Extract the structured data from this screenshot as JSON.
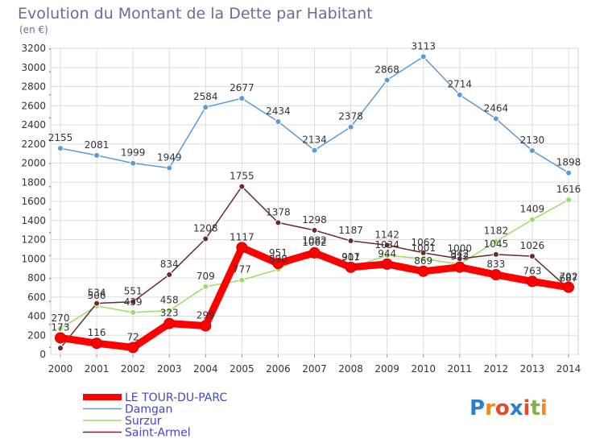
{
  "chart_data": {
    "type": "line",
    "title": "Evolution du Montant de la Dette par Habitant",
    "subtitle": "(en €)",
    "x": [
      2000,
      2001,
      2002,
      2003,
      2004,
      2005,
      2006,
      2007,
      2008,
      2009,
      2010,
      2011,
      2012,
      2013,
      2014
    ],
    "ylim": [
      0,
      3200
    ],
    "yticks": [
      0,
      200,
      400,
      600,
      800,
      1000,
      1200,
      1400,
      1600,
      1800,
      2000,
      2200,
      2400,
      2600,
      2800,
      3000,
      3200
    ],
    "grid": true,
    "legend": "bottom-left",
    "series": [
      {
        "name": "Damgan",
        "color": "#5b9bd5",
        "values": [
          2155,
          2081,
          1999,
          1949,
          2584,
          2677,
          2434,
          2134,
          2378,
          2868,
          3113,
          2714,
          2464,
          2130,
          1898
        ]
      },
      {
        "name": "Surzur",
        "color": "#99dd66",
        "values": [
          270,
          506,
          439,
          458,
          709,
          777,
          890,
          1082,
          907,
          1034,
          1001,
          942,
          1182,
          1409,
          1616
        ]
      },
      {
        "name": "Saint-Armel",
        "color": "#6b2a2a",
        "values": [
          66,
          534,
          551,
          834,
          1208,
          1755,
          1378,
          1298,
          1187,
          1142,
          1062,
          1000,
          1045,
          1026,
          687
        ]
      },
      {
        "name": "LE TOUR-DU-PARC",
        "color": "#ff0000",
        "values": [
          173,
          116,
          72,
          323,
          299,
          1117,
          951,
          1062,
          911,
          944,
          869,
          912,
          833,
          763,
          702
        ]
      }
    ],
    "labels": [
      {
        "text": "2155",
        "x": 2000,
        "y": 2155,
        "pos": "above"
      },
      {
        "text": "2081",
        "x": 2001,
        "y": 2081,
        "pos": "above"
      },
      {
        "text": "1999",
        "x": 2002,
        "y": 1999,
        "pos": "above"
      },
      {
        "text": "1949",
        "x": 2003,
        "y": 1949,
        "pos": "above"
      },
      {
        "text": "2584",
        "x": 2004,
        "y": 2584,
        "pos": "above"
      },
      {
        "text": "2677",
        "x": 2005,
        "y": 2677,
        "pos": "above"
      },
      {
        "text": "2434",
        "x": 2006,
        "y": 2434,
        "pos": "above"
      },
      {
        "text": "2134",
        "x": 2007,
        "y": 2134,
        "pos": "above"
      },
      {
        "text": "2378",
        "x": 2008,
        "y": 2378,
        "pos": "above"
      },
      {
        "text": "2868",
        "x": 2009,
        "y": 2868,
        "pos": "above"
      },
      {
        "text": "3113",
        "x": 2010,
        "y": 3113,
        "pos": "above"
      },
      {
        "text": "2714",
        "x": 2011,
        "y": 2714,
        "pos": "above"
      },
      {
        "text": "2464",
        "x": 2012,
        "y": 2464,
        "pos": "above"
      },
      {
        "text": "2130",
        "x": 2013,
        "y": 2130,
        "pos": "above"
      },
      {
        "text": "1898",
        "x": 2014,
        "y": 1898,
        "pos": "above"
      },
      {
        "text": "270",
        "x": 2000,
        "y": 270,
        "pos": "above"
      },
      {
        "text": "506",
        "x": 2001,
        "y": 506,
        "pos": "above"
      },
      {
        "text": "439",
        "x": 2002,
        "y": 439,
        "pos": "above"
      },
      {
        "text": "458",
        "x": 2003,
        "y": 458,
        "pos": "above"
      },
      {
        "text": "709",
        "x": 2004,
        "y": 709,
        "pos": "above"
      },
      {
        "text": "777",
        "x": 2005,
        "y": 777,
        "pos": "above"
      },
      {
        "text": "890",
        "x": 2006,
        "y": 890,
        "pos": "above"
      },
      {
        "text": "1082",
        "x": 2007,
        "y": 1082,
        "pos": "above"
      },
      {
        "text": "907",
        "x": 2008,
        "y": 907,
        "pos": "above"
      },
      {
        "text": "1034",
        "x": 2009,
        "y": 1034,
        "pos": "above"
      },
      {
        "text": "1001",
        "x": 2010,
        "y": 1001,
        "pos": "above"
      },
      {
        "text": "942",
        "x": 2011,
        "y": 942,
        "pos": "above"
      },
      {
        "text": "1182",
        "x": 2012,
        "y": 1182,
        "pos": "above"
      },
      {
        "text": "1409",
        "x": 2013,
        "y": 1409,
        "pos": "above"
      },
      {
        "text": "1616",
        "x": 2014,
        "y": 1616,
        "pos": "above"
      },
      {
        "text": "534",
        "x": 2001,
        "y": 534,
        "pos": "above"
      },
      {
        "text": "551",
        "x": 2002,
        "y": 551,
        "pos": "above"
      },
      {
        "text": "834",
        "x": 2003,
        "y": 834,
        "pos": "above"
      },
      {
        "text": "1208",
        "x": 2004,
        "y": 1208,
        "pos": "above"
      },
      {
        "text": "1755",
        "x": 2005,
        "y": 1755,
        "pos": "above"
      },
      {
        "text": "1378",
        "x": 2006,
        "y": 1378,
        "pos": "above"
      },
      {
        "text": "1298",
        "x": 2007,
        "y": 1298,
        "pos": "above"
      },
      {
        "text": "1187",
        "x": 2008,
        "y": 1187,
        "pos": "above"
      },
      {
        "text": "1142",
        "x": 2009,
        "y": 1142,
        "pos": "above"
      },
      {
        "text": "1062",
        "x": 2010,
        "y": 1062,
        "pos": "above"
      },
      {
        "text": "1000",
        "x": 2011,
        "y": 1000,
        "pos": "above"
      },
      {
        "text": "1045",
        "x": 2012,
        "y": 1045,
        "pos": "above"
      },
      {
        "text": "1026",
        "x": 2013,
        "y": 1026,
        "pos": "above"
      },
      {
        "text": "687",
        "x": 2014,
        "y": 687,
        "pos": "above"
      },
      {
        "text": "173",
        "x": 2000,
        "y": 173,
        "pos": "above"
      },
      {
        "text": "116",
        "x": 2001,
        "y": 116,
        "pos": "above"
      },
      {
        "text": "72",
        "x": 2002,
        "y": 72,
        "pos": "above"
      },
      {
        "text": "323",
        "x": 2003,
        "y": 323,
        "pos": "above"
      },
      {
        "text": "299",
        "x": 2004,
        "y": 299,
        "pos": "above"
      },
      {
        "text": "1117",
        "x": 2005,
        "y": 1117,
        "pos": "above"
      },
      {
        "text": "951",
        "x": 2006,
        "y": 951,
        "pos": "above"
      },
      {
        "text": "1062",
        "x": 2007,
        "y": 1062,
        "pos": "above"
      },
      {
        "text": "911",
        "x": 2008,
        "y": 911,
        "pos": "above"
      },
      {
        "text": "944",
        "x": 2009,
        "y": 944,
        "pos": "above"
      },
      {
        "text": "869",
        "x": 2010,
        "y": 869,
        "pos": "above"
      },
      {
        "text": "912",
        "x": 2011,
        "y": 912,
        "pos": "above"
      },
      {
        "text": "833",
        "x": 2012,
        "y": 833,
        "pos": "above"
      },
      {
        "text": "763",
        "x": 2013,
        "y": 763,
        "pos": "above"
      },
      {
        "text": "702",
        "x": 2014,
        "y": 702,
        "pos": "above"
      }
    ]
  },
  "legend": [
    {
      "name": "LE TOUR-DU-PARC",
      "color": "#ff0000"
    },
    {
      "name": "Damgan",
      "color": "#5b9bd5"
    },
    {
      "name": "Surzur",
      "color": "#99dd66"
    },
    {
      "name": "Saint-Armel",
      "color": "#6b2a2a"
    }
  ],
  "logo": {
    "letters": [
      "P",
      "r",
      "o",
      "x",
      "i",
      "t",
      "i"
    ],
    "colors": [
      "#2a7fd0",
      "#f08a1c",
      "#e24b2b",
      "#2a7fd0",
      "#e24b2b",
      "#7ab648",
      "#f08a1c"
    ]
  }
}
